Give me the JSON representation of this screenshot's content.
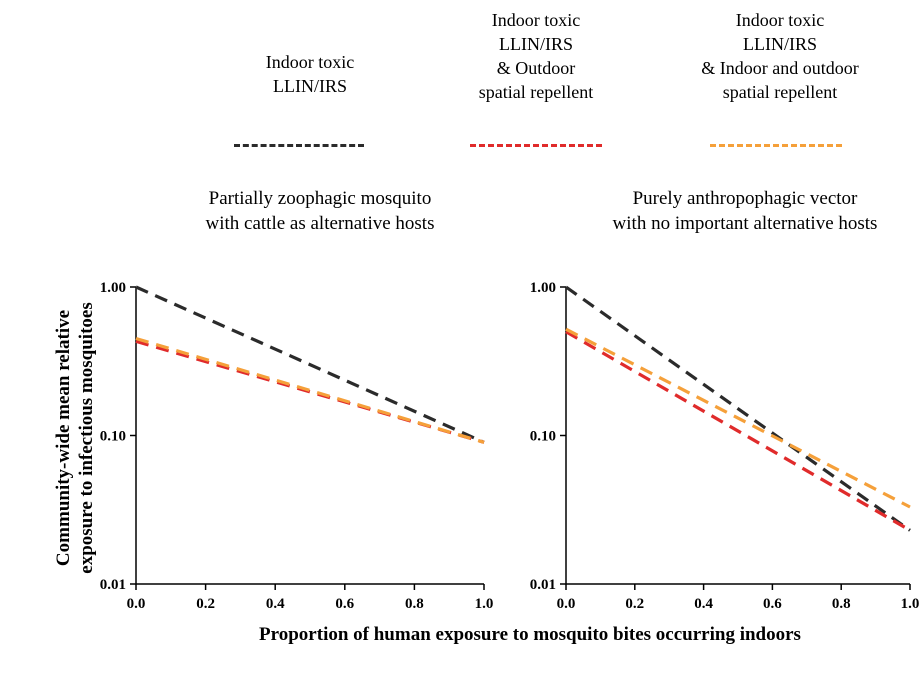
{
  "legend": [
    {
      "label": "Indoor toxic\nLLIN/IRS",
      "color": "#2b2b2b"
    },
    {
      "label": "Indoor toxic\nLLIN/IRS\n& Outdoor\nspatial repellent",
      "color": "#e02b2b"
    },
    {
      "label": "Indoor toxic\nLLIN/IRS\n& Indoor and outdoor\nspatial repellent",
      "color": "#f5a03a"
    }
  ],
  "ylabel": "Community-wide mean relative\nexposure to infectious mosquitoes",
  "xlabel": "Proportion of human exposure to mosquito bites occurring indoors",
  "chart_data": [
    {
      "type": "line",
      "title": "Partially zoophagic mosquito\nwith cattle as alternative hosts",
      "yscale": "log",
      "ylim": [
        0.01,
        1.0
      ],
      "xlim": [
        0.0,
        1.0
      ],
      "x_ticks": [
        "0.0",
        "0.2",
        "0.4",
        "0.6",
        "0.8",
        "1.0"
      ],
      "y_ticks": [
        "0.01",
        "0.10",
        "1.00"
      ],
      "series": [
        {
          "name": "Indoor toxic LLIN/IRS",
          "x": [
            0.0,
            1.0
          ],
          "y": [
            1.0,
            0.09
          ]
        },
        {
          "name": "Indoor toxic LLIN/IRS & Outdoor spatial repellent",
          "x": [
            0.0,
            1.0
          ],
          "y": [
            0.43,
            0.09
          ]
        },
        {
          "name": "Indoor toxic LLIN/IRS & Indoor and outdoor spatial repellent",
          "x": [
            0.0,
            1.0
          ],
          "y": [
            0.45,
            0.09
          ]
        }
      ]
    },
    {
      "type": "line",
      "title": "Purely anthropophagic vector\nwith no important alternative hosts",
      "yscale": "log",
      "ylim": [
        0.01,
        1.0
      ],
      "xlim": [
        0.0,
        1.0
      ],
      "x_ticks": [
        "0.0",
        "0.2",
        "0.4",
        "0.6",
        "0.8",
        "1.0"
      ],
      "y_ticks": [
        "0.01",
        "0.10",
        "1.00"
      ],
      "series": [
        {
          "name": "Indoor toxic LLIN/IRS",
          "x": [
            0.0,
            1.0
          ],
          "y": [
            1.0,
            0.023
          ]
        },
        {
          "name": "Indoor toxic LLIN/IRS & Outdoor spatial repellent",
          "x": [
            0.0,
            1.0
          ],
          "y": [
            0.5,
            0.023
          ]
        },
        {
          "name": "Indoor toxic LLIN/IRS & Indoor and outdoor spatial repellent",
          "x": [
            0.0,
            1.0
          ],
          "y": [
            0.52,
            0.033
          ]
        }
      ]
    }
  ]
}
